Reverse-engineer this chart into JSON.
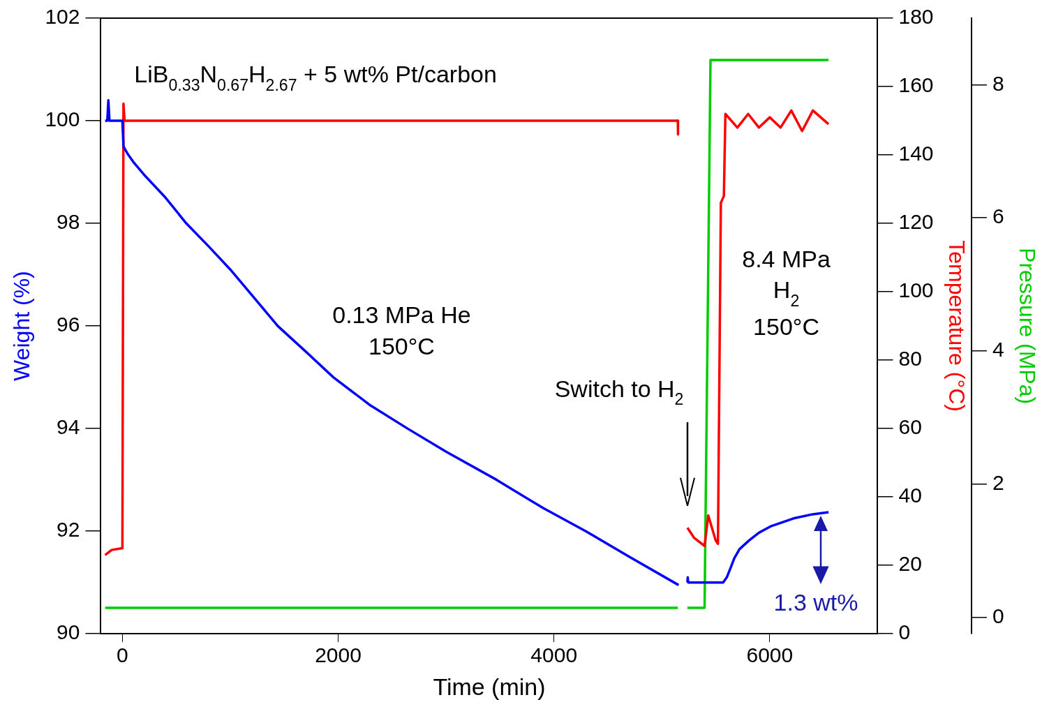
{
  "chart_data": {
    "type": "line",
    "xlabel": "Time (min)",
    "ylabel": "Weight (%)",
    "y2label": "Temperature (°C)",
    "y3label": "Pressure (MPa)",
    "xlim": [
      -200,
      7000
    ],
    "xticks": [
      0,
      2000,
      4000,
      6000
    ],
    "ylim": [
      90,
      102
    ],
    "yticks": [
      90,
      92,
      94,
      96,
      98,
      100,
      102
    ],
    "y2lim": [
      0,
      180
    ],
    "y2ticks": [
      0,
      20,
      40,
      60,
      80,
      100,
      120,
      140,
      160,
      180
    ],
    "y3lim": [
      -0.25,
      9
    ],
    "y3ticks": [
      0,
      2,
      4,
      6,
      8
    ],
    "series": [
      {
        "color": "#0000ff",
        "axis": "y",
        "x": [
          -160,
          -140,
          -130,
          -120,
          -5,
          0,
          10,
          50,
          100,
          200,
          400,
          592,
          800,
          1000,
          1200,
          1440,
          1700,
          1955,
          2300,
          2643,
          3000,
          3469,
          3900,
          4295,
          4700,
          5155,
          5200,
          5237,
          5240,
          5244,
          5400,
          5568,
          5602,
          5640,
          5671,
          5720,
          5809,
          5900,
          6015,
          6222,
          6400,
          6545
        ],
        "values": [
          100,
          100,
          100.4,
          100,
          100,
          100,
          99.5,
          99.35,
          99.2,
          98.95,
          98.5,
          98.0,
          97.55,
          97.1,
          96.6,
          96.0,
          95.5,
          95.0,
          94.45,
          94.0,
          93.55,
          93.0,
          92.45,
          92.0,
          91.5,
          90.95,
          null,
          91.0,
          91.1,
          91.0,
          91.0,
          91.0,
          91.1,
          91.3,
          91.47,
          91.65,
          91.82,
          91.97,
          92.1,
          92.25,
          92.33,
          92.37
        ]
      },
      {
        "color": "#ff0000",
        "axis": "y2",
        "x": [
          -160,
          -100,
          -10,
          0,
          10,
          20,
          5148,
          5150,
          5200,
          5237,
          5300,
          5396,
          5430,
          5499,
          5520,
          5547,
          5575,
          5589,
          5700,
          5800,
          5900,
          6000,
          6100,
          6200,
          6300,
          6400,
          6545
        ],
        "values": [
          23,
          24.5,
          25,
          25,
          155,
          150,
          150,
          146,
          null,
          31,
          28,
          25.7,
          34.6,
          27.3,
          26.3,
          126,
          128,
          152,
          148,
          152,
          148,
          151,
          148,
          153,
          147,
          153,
          149
        ]
      },
      {
        "color": "#00cc00",
        "axis": "y3",
        "x": [
          -160,
          5148,
          5200,
          5237,
          5396,
          5451,
          6545
        ],
        "values": [
          0.14,
          0.14,
          null,
          0.14,
          0.14,
          8.37,
          8.37
        ]
      }
    ],
    "annotations": [
      "LiB$_{0.33}$N$_{0.67}$H$_{2.67}$ + 5 wt% Pt/carbon",
      "0.13 MPa He",
      "150°C",
      "Switch to H$_{2}$",
      "8.4 MPa",
      "H$_{2}$",
      "150°C",
      "1.3 wt%"
    ],
    "grid": false,
    "legend": false,
    "marker": "none",
    "line_style": "solid"
  }
}
